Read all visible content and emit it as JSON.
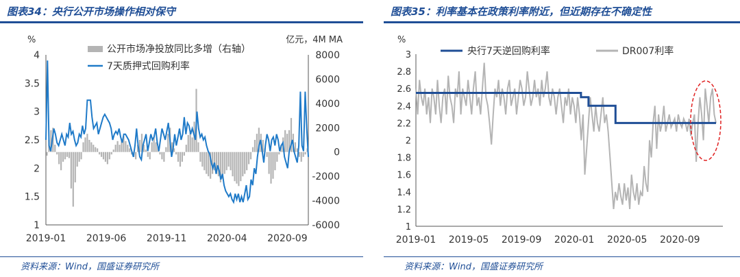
{
  "figures": [
    {
      "title": "图表34：央行公开市场操作相对保守",
      "source": "资料来源：Wind，国盛证券研究所"
    },
    {
      "title": "图表35：利率基本在政策利率附近，但近期存在不确定性",
      "source": "资料来源：Wind，国盛证券研究所"
    }
  ],
  "chart_data": [
    {
      "type": "bar+line",
      "left_unit": "%",
      "right_unit": "亿元，4M MA",
      "yleft": [
        1,
        4
      ],
      "yleft_ticks": [
        "1",
        "1.5",
        "2",
        "2.5",
        "3",
        "3.5",
        "4"
      ],
      "yright": [
        -6000,
        8000
      ],
      "yright_ticks": [
        "-6000",
        "-4000",
        "-2000",
        "0",
        "2000",
        "4000",
        "6000",
        "8000"
      ],
      "x_ticks": [
        "2019-01",
        "2019-06",
        "2019-11",
        "2020-04",
        "2020-09"
      ],
      "legend_position": "top-center",
      "series": [
        {
          "name": "公开市场净投放同比多增（右轴）",
          "kind": "bar",
          "axis": "right",
          "color": "#b4b4b4",
          "values": [
            -300,
            1000,
            1800,
            2000,
            600,
            -200,
            -1000,
            -1500,
            -800,
            -600,
            -400,
            -500,
            -3000,
            -4500,
            -2500,
            -1200,
            -800,
            -600,
            800,
            1200,
            1500,
            1000,
            800,
            600,
            400,
            300,
            -200,
            -400,
            -600,
            -800,
            -1000,
            -600,
            -200,
            200,
            600,
            900,
            600,
            1000,
            1300,
            900,
            600,
            300,
            -200,
            -400,
            -600,
            600,
            1000,
            1500,
            600,
            200,
            -400,
            -600,
            800,
            1200,
            800,
            400,
            -200,
            -600,
            -800,
            400,
            1500,
            2000,
            800,
            300,
            -200,
            -800,
            -1200,
            -800,
            -300,
            600,
            1400,
            1800,
            1200,
            2500,
            5200,
            800,
            -800,
            -1200,
            -1500,
            -1800,
            -2000,
            -2200,
            -1800,
            -1500,
            -1800,
            -2000,
            -2500,
            -2200,
            -1800,
            -1500,
            -1200,
            -1500,
            -2000,
            -2400,
            -2600,
            -2800,
            -2400,
            -2000,
            -1800,
            -1500,
            -1000,
            -600,
            400,
            1000,
            1500,
            2000,
            1500,
            1000,
            300,
            -400,
            -1800,
            -2600,
            -2200,
            -1500,
            -800,
            -200,
            600,
            1200,
            1800,
            1500,
            1800,
            2800,
            1500,
            800,
            300,
            -400,
            -800,
            -400,
            -200,
            300
          ]
        },
        {
          "name": "7天质押式回购利率",
          "kind": "line",
          "axis": "left",
          "color": "#1f7ac8",
          "values": [
            2.5,
            3.9,
            2.4,
            2.3,
            2.5,
            2.7,
            2.6,
            2.45,
            2.4,
            2.5,
            2.6,
            2.5,
            2.4,
            2.6,
            2.55,
            2.8,
            2.6,
            2.65,
            2.5,
            2.4,
            2.45,
            2.6,
            2.55,
            2.75,
            2.6,
            2.7,
            3.2,
            3.2,
            3.2,
            2.9,
            2.7,
            2.75,
            2.8,
            2.6,
            2.7,
            2.8,
            2.9,
            2.95,
            2.9,
            2.85,
            2.8,
            2.7,
            2.5,
            2.6,
            2.65,
            2.6,
            2.7,
            2.55,
            2.45,
            2.6,
            2.6,
            2.55,
            2.5,
            2.4,
            2.3,
            2.2,
            2.4,
            2.7,
            2.4,
            2.2,
            2.15,
            2.4,
            2.5,
            2.6,
            2.3,
            2.45,
            2.6,
            2.5,
            2.55,
            2.7,
            2.45,
            2.3,
            2.5,
            2.7,
            2.6,
            2.5,
            2.65,
            2.8,
            2.5,
            2.2,
            2.35,
            2.6,
            2.4,
            2.55,
            2.7,
            2.5,
            2.6,
            2.9,
            2.6,
            2.8,
            2.75,
            2.6,
            2.7,
            2.6,
            2.5,
            3.0,
            2.7,
            2.55,
            2.6,
            2.5,
            2.55,
            2.4,
            2.3,
            2.25,
            2.1,
            2.0,
            2.1,
            1.9,
            2.05,
            1.95,
            1.8,
            1.9,
            1.7,
            1.6,
            1.55,
            1.5,
            1.55,
            1.45,
            1.4,
            1.55,
            1.45,
            1.55,
            1.4,
            1.5,
            1.4,
            1.55,
            1.7,
            1.45,
            1.5,
            1.8,
            1.7,
            2.0,
            1.9,
            2.2,
            2.4,
            2.5,
            2.3,
            2.1,
            2.4,
            2.6,
            2.5,
            2.3,
            2.5,
            2.55,
            2.4,
            2.6,
            2.5,
            2.3,
            2.4,
            2.45,
            2.2,
            2.1,
            2.0,
            2.3,
            2.4,
            2.5,
            2.3,
            2.2,
            2.1,
            2.4,
            3.35,
            2.4,
            2.3,
            3.35,
            2.7,
            2.2
          ]
        }
      ]
    },
    {
      "type": "line",
      "y_unit": "%",
      "ylim": [
        1,
        3
      ],
      "y_ticks": [
        "1",
        "1.2",
        "1.4",
        "1.6",
        "1.8",
        "2",
        "2.2",
        "2.4",
        "2.6",
        "2.8",
        "3"
      ],
      "x_ticks": [
        "2019-01",
        "2019-05",
        "2019-09",
        "2020-01",
        "2020-05",
        "2020-09"
      ],
      "legend_position": "top-center",
      "series": [
        {
          "name": "央行7天逆回购利率",
          "kind": "step",
          "color": "#1f4e96",
          "points": [
            [
              0,
              2.55
            ],
            [
              0.55,
              2.55
            ],
            [
              0.55,
              2.5
            ],
            [
              0.575,
              2.5
            ],
            [
              0.575,
              2.4
            ],
            [
              0.665,
              2.4
            ],
            [
              0.665,
              2.2
            ],
            [
              1.0,
              2.2
            ]
          ]
        },
        {
          "name": "DR007利率",
          "kind": "line",
          "color": "#b4b4b4",
          "values": [
            2.6,
            2.3,
            2.7,
            2.5,
            2.4,
            2.6,
            2.3,
            2.5,
            2.2,
            2.6,
            2.5,
            2.3,
            2.7,
            2.4,
            2.2,
            2.5,
            2.6,
            2.3,
            2.75,
            2.5,
            2.4,
            2.2,
            2.6,
            2.5,
            2.8,
            2.3,
            2.6,
            2.5,
            2.4,
            2.7,
            2.5,
            2.3,
            2.6,
            2.8,
            2.4,
            2.5,
            2.3,
            2.6,
            2.9,
            2.5,
            2.4,
            2.2,
            1.95,
            2.3,
            2.6,
            2.5,
            2.7,
            2.4,
            2.6,
            2.5,
            2.3,
            2.6,
            2.7,
            2.4,
            2.5,
            2.6,
            2.3,
            2.5,
            2.7,
            2.6,
            2.4,
            2.5,
            2.8,
            2.6,
            2.4,
            2.5,
            2.7,
            2.5,
            2.6,
            2.4,
            2.7,
            2.5,
            2.6,
            2.8,
            2.5,
            2.4,
            2.6,
            2.5,
            2.3,
            2.5,
            2.6,
            2.4,
            2.2,
            2.5,
            2.4,
            2.6,
            2.3,
            2.5,
            2.4,
            2.2,
            2.5,
            2.3,
            2.0,
            2.3,
            1.6,
            1.9,
            2.2,
            2.5,
            2.3,
            2.1,
            2.4,
            2.2,
            2.1,
            2.3,
            2.5,
            2.2,
            2.3,
            2.1,
            1.8,
            1.5,
            1.2,
            1.4,
            1.3,
            1.5,
            1.35,
            1.25,
            1.5,
            1.3,
            1.45,
            1.2,
            1.6,
            1.4,
            1.3,
            1.5,
            1.25,
            1.4,
            1.35,
            1.7,
            1.5,
            1.4,
            2.0,
            1.8,
            2.2,
            2.4,
            1.9,
            2.3,
            2.1,
            2.2,
            2.4,
            2.1,
            2.2,
            2.3,
            2.15,
            2.2,
            2.25,
            2.1,
            2.3,
            2.2,
            2.15,
            2.25,
            2.2,
            2.1,
            2.25,
            2.05,
            2.2,
            2.3,
            1.75,
            2.2,
            2.5,
            2.3,
            2.0,
            2.6,
            2.4,
            2.2,
            2.5,
            2.6,
            2.3,
            2.2
          ]
        }
      ]
    }
  ]
}
